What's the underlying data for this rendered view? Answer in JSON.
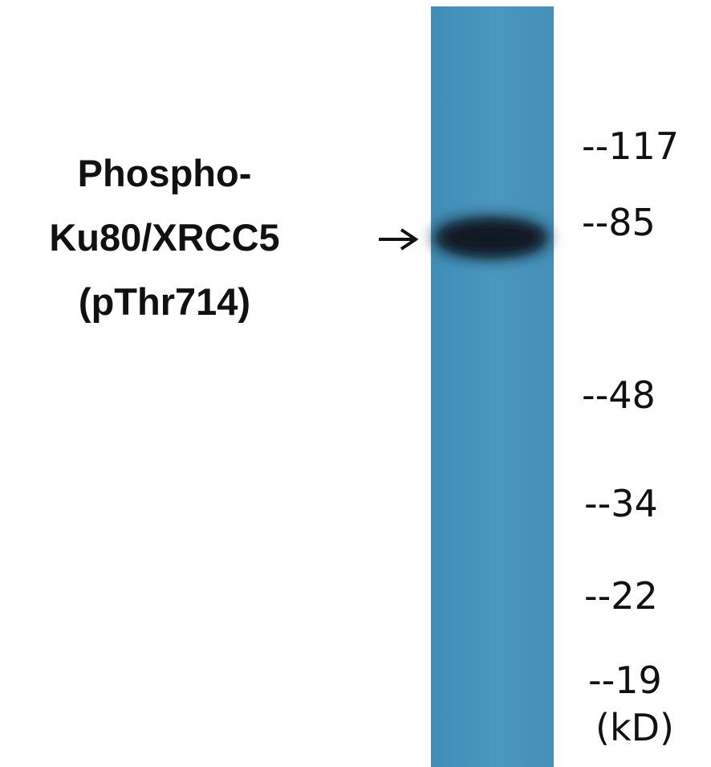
{
  "label": {
    "lines": [
      "Phospho-",
      "Ku80/XRCC5",
      "(pThr714)"
    ]
  },
  "markers": [
    "--117",
    "--85",
    "--48",
    "--34",
    "--22",
    "--19"
  ],
  "unit": "(kD)"
}
